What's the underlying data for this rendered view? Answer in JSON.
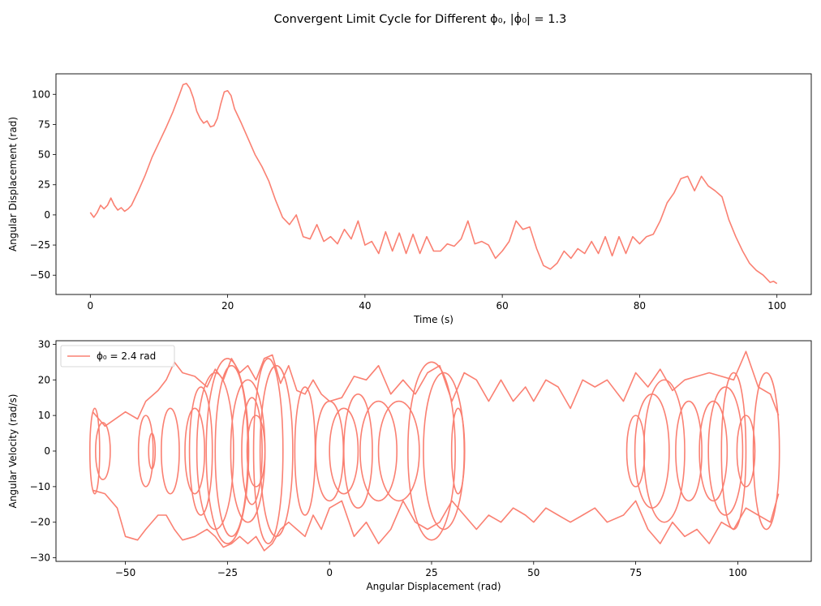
{
  "figure": {
    "suptitle": "Convergent Limit Cycle for Different ϕ₀, |ϕ̇₀| = 1.3",
    "line_color": "#fa8072"
  },
  "chart_data": [
    {
      "type": "line",
      "xlabel": "Time (s)",
      "ylabel": "Angular Displacement (rad)",
      "xlim": [
        -5,
        105
      ],
      "ylim": [
        -66,
        117
      ],
      "xticks": [
        0,
        20,
        40,
        60,
        80,
        100
      ],
      "yticks": [
        -50,
        -25,
        0,
        25,
        50,
        75,
        100
      ],
      "grid": false,
      "series": [
        {
          "color": "#fa8072",
          "x": [
            0,
            0.5,
            1,
            1.5,
            2,
            2.5,
            3,
            3.5,
            4,
            4.5,
            5,
            5.5,
            6,
            6.5,
            7,
            8,
            9,
            10,
            11,
            12,
            13,
            13.5,
            14,
            14.5,
            15,
            15.5,
            16,
            16.5,
            17,
            17.5,
            18,
            18.5,
            19,
            19.5,
            20,
            20.5,
            21,
            22,
            23,
            24,
            25,
            26,
            27,
            28,
            29,
            30,
            31,
            32,
            33,
            34,
            35,
            36,
            37,
            38,
            39,
            40,
            41,
            42,
            43,
            44,
            45,
            46,
            47,
            48,
            49,
            50,
            51,
            52,
            53,
            54,
            55,
            56,
            57,
            58,
            59,
            60,
            61,
            62,
            63,
            64,
            65,
            66,
            67,
            68,
            69,
            70,
            71,
            72,
            73,
            74,
            75,
            76,
            77,
            78,
            79,
            80,
            81,
            82,
            83,
            84,
            85,
            86,
            87,
            88,
            89,
            90,
            91,
            92,
            93,
            94,
            95,
            96,
            97,
            98,
            99,
            99.5,
            100
          ],
          "y": [
            2,
            -2,
            2,
            8,
            5,
            8,
            14,
            8,
            4,
            6,
            3,
            5,
            8,
            14,
            20,
            33,
            48,
            60,
            72,
            85,
            100,
            108,
            109,
            105,
            97,
            86,
            80,
            76,
            78,
            73,
            74,
            80,
            92,
            102,
            103,
            99,
            88,
            76,
            63,
            50,
            40,
            28,
            12,
            -2,
            -8,
            0,
            -18,
            -20,
            -8,
            -22,
            -18,
            -24,
            -12,
            -20,
            -5,
            -25,
            -22,
            -32,
            -14,
            -30,
            -15,
            -32,
            -16,
            -32,
            -18,
            -30,
            -30,
            -24,
            -26,
            -20,
            -5,
            -24,
            -22,
            -25,
            -36,
            -30,
            -22,
            -5,
            -12,
            -10,
            -28,
            -42,
            -45,
            -40,
            -30,
            -36,
            -28,
            -32,
            -22,
            -32,
            -18,
            -34,
            -18,
            -32,
            -18,
            -24,
            -18,
            -16,
            -5,
            10,
            18,
            30,
            32,
            20,
            32,
            24,
            20,
            15,
            -4,
            -18,
            -30,
            -40,
            -46,
            -50,
            -56,
            -55,
            -57
          ]
        }
      ]
    },
    {
      "type": "line",
      "xlabel": "Angular Displacement (rad)",
      "ylabel": "Angular Velocity (rad/s)",
      "xlim": [
        -67,
        118
      ],
      "ylim": [
        -31,
        31
      ],
      "xticks": [
        -50,
        -25,
        0,
        25,
        50,
        75,
        100
      ],
      "yticks": [
        -30,
        -20,
        -10,
        0,
        10,
        20,
        30
      ],
      "grid": false,
      "legend": {
        "label": "ϕ₀ = 2.4 rad",
        "position": "upper left"
      },
      "series": [
        {
          "name": "ϕ₀ = 2.4 rad",
          "color": "#fa8072",
          "ellipses": [
            [
              -57.5,
              0,
              1.2,
              12
            ],
            [
              -55.5,
              0,
              1.8,
              8
            ],
            [
              -45,
              0,
              1.8,
              10
            ],
            [
              -43.5,
              0,
              0.8,
              5
            ],
            [
              -39,
              0,
              2.2,
              12
            ],
            [
              -33,
              0,
              2.4,
              12
            ],
            [
              -31.5,
              0,
              2.8,
              18
            ],
            [
              -28,
              0,
              4.5,
              22
            ],
            [
              -25,
              0,
              5.2,
              26
            ],
            [
              -24,
              0,
              4,
              24
            ],
            [
              -20,
              0,
              4.2,
              20
            ],
            [
              -19,
              0,
              2.5,
              15
            ],
            [
              -18,
              0,
              2.2,
              10
            ],
            [
              -15,
              0,
              3.6,
              26
            ],
            [
              -13,
              0,
              4,
              24
            ],
            [
              -6,
              0,
              2.5,
              18
            ],
            [
              0,
              0,
              3.4,
              14
            ],
            [
              3.5,
              0,
              3.5,
              12
            ],
            [
              7,
              0,
              3.5,
              16
            ],
            [
              12,
              0,
              4.5,
              14
            ],
            [
              17,
              0,
              5,
              14
            ],
            [
              25,
              0,
              5.8,
              25
            ],
            [
              28,
              0,
              5,
              22
            ],
            [
              31.5,
              0,
              1.6,
              12
            ],
            [
              75,
              0,
              2.2,
              10
            ],
            [
              79,
              0,
              4.2,
              16
            ],
            [
              82,
              0,
              5,
              20
            ],
            [
              88,
              0,
              3.2,
              14
            ],
            [
              94,
              0,
              3.4,
              14
            ],
            [
              97,
              0,
              4.2,
              18
            ],
            [
              99,
              0,
              3,
              22
            ],
            [
              102,
              0,
              2.2,
              10
            ],
            [
              107,
              0,
              3.2,
              22
            ]
          ],
          "upper_envelope": {
            "x": [
              -58,
              -55,
              -50,
              -47,
              -45,
              -42,
              -40,
              -38,
              -36,
              -33,
              -30,
              -28,
              -26,
              -24,
              -22,
              -20,
              -18,
              -16,
              -14,
              -12,
              -10,
              -8,
              -6,
              -4,
              -2,
              0,
              3,
              6,
              9,
              12,
              15,
              18,
              21,
              24,
              27,
              30,
              33,
              36,
              39,
              42,
              45,
              48,
              50,
              53,
              56,
              59,
              62,
              65,
              68,
              72,
              75,
              78,
              81,
              84,
              87,
              90,
              93,
              96,
              99,
              102,
              105,
              108,
              110
            ],
            "y": [
              11,
              7,
              11,
              9,
              14,
              17,
              20,
              25,
              22,
              21,
              18,
              23,
              20,
              26,
              22,
              24,
              20,
              26,
              27,
              19,
              24,
              17,
              16,
              20,
              16,
              14,
              15,
              21,
              20,
              24,
              16,
              20,
              16,
              22,
              24,
              14,
              22,
              20,
              14,
              20,
              14,
              18,
              14,
              20,
              18,
              12,
              20,
              18,
              20,
              14,
              22,
              18,
              23,
              17,
              20,
              21,
              22,
              21,
              20,
              28,
              18,
              16,
              10
            ]
          },
          "lower_envelope": {
            "x": [
              -58,
              -55,
              -52,
              -50,
              -47,
              -45,
              -42,
              -40,
              -38,
              -36,
              -33,
              -30,
              -28,
              -26,
              -24,
              -22,
              -20,
              -18,
              -16,
              -14,
              -12,
              -10,
              -8,
              -6,
              -4,
              -2,
              0,
              3,
              6,
              9,
              12,
              15,
              18,
              21,
              24,
              27,
              30,
              33,
              36,
              39,
              42,
              45,
              48,
              50,
              53,
              56,
              59,
              62,
              65,
              68,
              72,
              75,
              78,
              81,
              84,
              87,
              90,
              93,
              96,
              99,
              102,
              105,
              108,
              110
            ],
            "y": [
              -11,
              -12,
              -16,
              -24,
              -25,
              -22,
              -18,
              -18,
              -22,
              -25,
              -24,
              -22,
              -24,
              -27,
              -26,
              -24,
              -26,
              -24,
              -28,
              -26,
              -22,
              -20,
              -22,
              -24,
              -18,
              -22,
              -16,
              -14,
              -24,
              -20,
              -26,
              -22,
              -14,
              -20,
              -22,
              -20,
              -14,
              -18,
              -22,
              -18,
              -20,
              -16,
              -18,
              -20,
              -16,
              -18,
              -20,
              -18,
              -16,
              -20,
              -18,
              -14,
              -22,
              -26,
              -20,
              -24,
              -22,
              -26,
              -20,
              -22,
              -16,
              -18,
              -20,
              -12
            ]
          }
        }
      ]
    }
  ]
}
